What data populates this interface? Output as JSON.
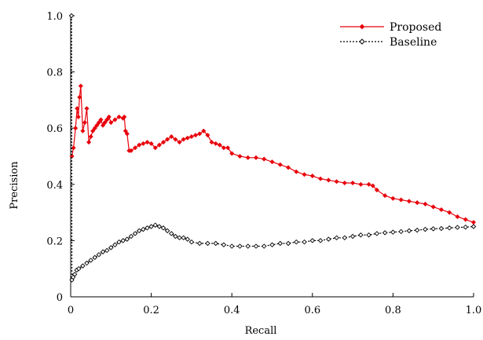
{
  "chart_data": {
    "type": "line",
    "xlabel": "Recall",
    "ylabel": "Precision",
    "xlim": [
      0,
      1
    ],
    "ylim": [
      0,
      1
    ],
    "x_ticks": [
      0,
      0.2,
      0.4,
      0.6,
      0.8,
      1.0
    ],
    "x_tick_labels": [
      "0",
      "0.2",
      "0.4",
      "0.6",
      "0.8",
      "1.0"
    ],
    "y_ticks": [
      0,
      0.2,
      0.4,
      0.6,
      0.8,
      1.0
    ],
    "y_tick_labels": [
      "0",
      "0.2",
      "0.4",
      "0.6",
      "0.8",
      "1.0"
    ],
    "grid": false,
    "legend_position": "top-right",
    "series": [
      {
        "name": "Proposed",
        "color": "#e8000b",
        "line_style": "solid",
        "marker": "diamond-filled",
        "points": [
          [
            0.003,
            0.5
          ],
          [
            0.007,
            0.53
          ],
          [
            0.012,
            0.6
          ],
          [
            0.016,
            0.67
          ],
          [
            0.019,
            0.64
          ],
          [
            0.022,
            0.71
          ],
          [
            0.025,
            0.75
          ],
          [
            0.03,
            0.59
          ],
          [
            0.035,
            0.62
          ],
          [
            0.04,
            0.67
          ],
          [
            0.045,
            0.55
          ],
          [
            0.05,
            0.57
          ],
          [
            0.055,
            0.59
          ],
          [
            0.06,
            0.6
          ],
          [
            0.065,
            0.61
          ],
          [
            0.07,
            0.62
          ],
          [
            0.075,
            0.63
          ],
          [
            0.08,
            0.61
          ],
          [
            0.085,
            0.62
          ],
          [
            0.09,
            0.63
          ],
          [
            0.095,
            0.64
          ],
          [
            0.1,
            0.62
          ],
          [
            0.11,
            0.63
          ],
          [
            0.12,
            0.64
          ],
          [
            0.13,
            0.635
          ],
          [
            0.133,
            0.64
          ],
          [
            0.136,
            0.59
          ],
          [
            0.14,
            0.58
          ],
          [
            0.145,
            0.52
          ],
          [
            0.15,
            0.52
          ],
          [
            0.16,
            0.53
          ],
          [
            0.17,
            0.54
          ],
          [
            0.18,
            0.545
          ],
          [
            0.19,
            0.55
          ],
          [
            0.2,
            0.545
          ],
          [
            0.21,
            0.53
          ],
          [
            0.22,
            0.54
          ],
          [
            0.23,
            0.55
          ],
          [
            0.24,
            0.56
          ],
          [
            0.25,
            0.57
          ],
          [
            0.26,
            0.56
          ],
          [
            0.27,
            0.55
          ],
          [
            0.28,
            0.56
          ],
          [
            0.29,
            0.565
          ],
          [
            0.3,
            0.57
          ],
          [
            0.31,
            0.575
          ],
          [
            0.32,
            0.58
          ],
          [
            0.33,
            0.59
          ],
          [
            0.34,
            0.575
          ],
          [
            0.35,
            0.55
          ],
          [
            0.36,
            0.545
          ],
          [
            0.37,
            0.54
          ],
          [
            0.38,
            0.53
          ],
          [
            0.39,
            0.53
          ],
          [
            0.4,
            0.51
          ],
          [
            0.42,
            0.5
          ],
          [
            0.44,
            0.495
          ],
          [
            0.46,
            0.495
          ],
          [
            0.48,
            0.49
          ],
          [
            0.5,
            0.48
          ],
          [
            0.52,
            0.47
          ],
          [
            0.54,
            0.46
          ],
          [
            0.56,
            0.445
          ],
          [
            0.58,
            0.435
          ],
          [
            0.6,
            0.43
          ],
          [
            0.62,
            0.42
          ],
          [
            0.64,
            0.415
          ],
          [
            0.66,
            0.41
          ],
          [
            0.68,
            0.405
          ],
          [
            0.7,
            0.405
          ],
          [
            0.72,
            0.4
          ],
          [
            0.74,
            0.4
          ],
          [
            0.75,
            0.395
          ],
          [
            0.76,
            0.38
          ],
          [
            0.78,
            0.36
          ],
          [
            0.8,
            0.35
          ],
          [
            0.82,
            0.345
          ],
          [
            0.84,
            0.34
          ],
          [
            0.86,
            0.335
          ],
          [
            0.88,
            0.33
          ],
          [
            0.9,
            0.32
          ],
          [
            0.92,
            0.31
          ],
          [
            0.94,
            0.3
          ],
          [
            0.96,
            0.285
          ],
          [
            0.98,
            0.275
          ],
          [
            1.0,
            0.265
          ]
        ]
      },
      {
        "name": "Baseline",
        "color": "#000000",
        "line_style": "dashed",
        "marker": "diamond-open",
        "points": [
          [
            0.002,
            1.0
          ],
          [
            0.003,
            0.06
          ],
          [
            0.006,
            0.07
          ],
          [
            0.01,
            0.08
          ],
          [
            0.015,
            0.095
          ],
          [
            0.02,
            0.1
          ],
          [
            0.03,
            0.11
          ],
          [
            0.04,
            0.12
          ],
          [
            0.05,
            0.13
          ],
          [
            0.06,
            0.14
          ],
          [
            0.07,
            0.15
          ],
          [
            0.08,
            0.16
          ],
          [
            0.09,
            0.165
          ],
          [
            0.1,
            0.175
          ],
          [
            0.11,
            0.185
          ],
          [
            0.12,
            0.195
          ],
          [
            0.13,
            0.2
          ],
          [
            0.14,
            0.205
          ],
          [
            0.15,
            0.215
          ],
          [
            0.16,
            0.225
          ],
          [
            0.17,
            0.235
          ],
          [
            0.18,
            0.24
          ],
          [
            0.19,
            0.245
          ],
          [
            0.2,
            0.25
          ],
          [
            0.21,
            0.255
          ],
          [
            0.22,
            0.25
          ],
          [
            0.23,
            0.245
          ],
          [
            0.24,
            0.235
          ],
          [
            0.25,
            0.225
          ],
          [
            0.26,
            0.215
          ],
          [
            0.27,
            0.21
          ],
          [
            0.28,
            0.21
          ],
          [
            0.29,
            0.205
          ],
          [
            0.3,
            0.195
          ],
          [
            0.32,
            0.19
          ],
          [
            0.34,
            0.19
          ],
          [
            0.36,
            0.19
          ],
          [
            0.38,
            0.185
          ],
          [
            0.4,
            0.18
          ],
          [
            0.42,
            0.18
          ],
          [
            0.44,
            0.18
          ],
          [
            0.46,
            0.18
          ],
          [
            0.48,
            0.18
          ],
          [
            0.5,
            0.185
          ],
          [
            0.52,
            0.19
          ],
          [
            0.54,
            0.19
          ],
          [
            0.56,
            0.195
          ],
          [
            0.58,
            0.195
          ],
          [
            0.6,
            0.2
          ],
          [
            0.62,
            0.2
          ],
          [
            0.64,
            0.205
          ],
          [
            0.66,
            0.21
          ],
          [
            0.68,
            0.21
          ],
          [
            0.7,
            0.215
          ],
          [
            0.72,
            0.22
          ],
          [
            0.74,
            0.22
          ],
          [
            0.76,
            0.225
          ],
          [
            0.78,
            0.228
          ],
          [
            0.8,
            0.23
          ],
          [
            0.82,
            0.232
          ],
          [
            0.84,
            0.235
          ],
          [
            0.86,
            0.237
          ],
          [
            0.88,
            0.24
          ],
          [
            0.9,
            0.242
          ],
          [
            0.92,
            0.243
          ],
          [
            0.94,
            0.245
          ],
          [
            0.96,
            0.247
          ],
          [
            0.98,
            0.248
          ],
          [
            1.0,
            0.25
          ]
        ]
      }
    ]
  }
}
